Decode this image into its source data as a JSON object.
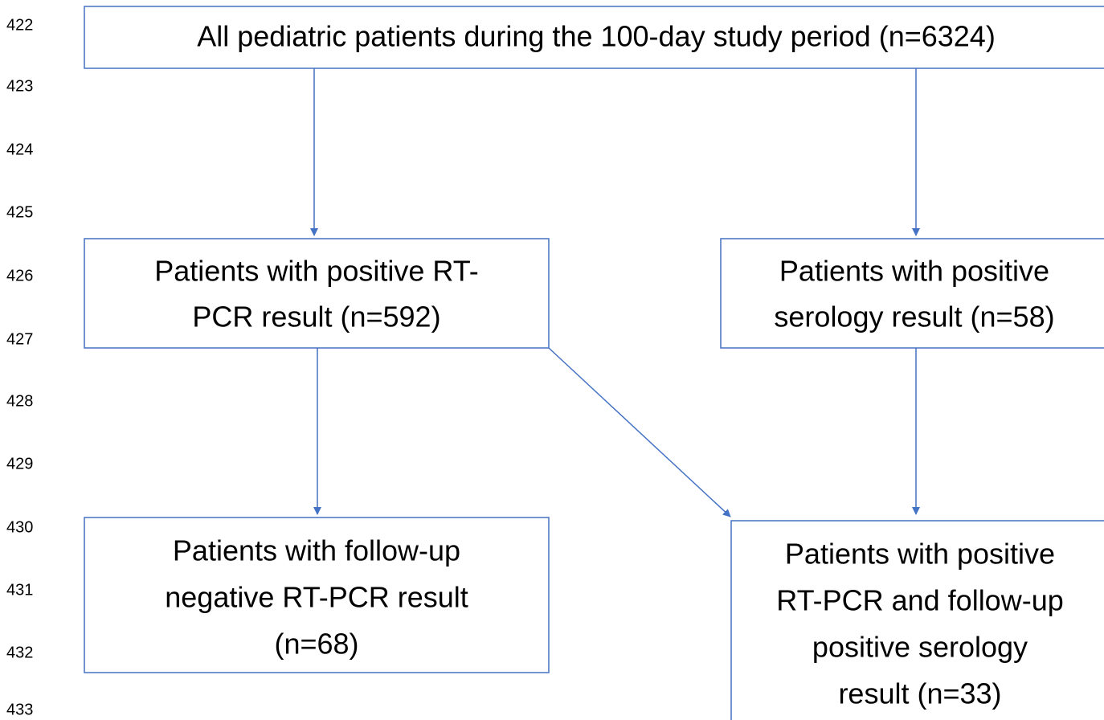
{
  "line_numbers": [
    "422",
    "423",
    "424",
    "425",
    "426",
    "427",
    "428",
    "429",
    "430",
    "431",
    "432",
    "433"
  ],
  "nodes": [
    {
      "lines": [
        "All pediatric patients during the 100-day study period (n=6324)"
      ]
    },
    {
      "lines": [
        "Patients with positive RT-",
        "PCR result (n=592)"
      ]
    },
    {
      "lines": [
        "Patients with positive",
        "serology result (n=58)"
      ]
    },
    {
      "lines": [
        "Patients with follow-up",
        "negative RT-PCR result",
        "(n=68)"
      ]
    },
    {
      "lines": [
        "Patients with positive",
        "RT-PCR and follow-up",
        "positive serology",
        "result (n=33)"
      ]
    }
  ]
}
